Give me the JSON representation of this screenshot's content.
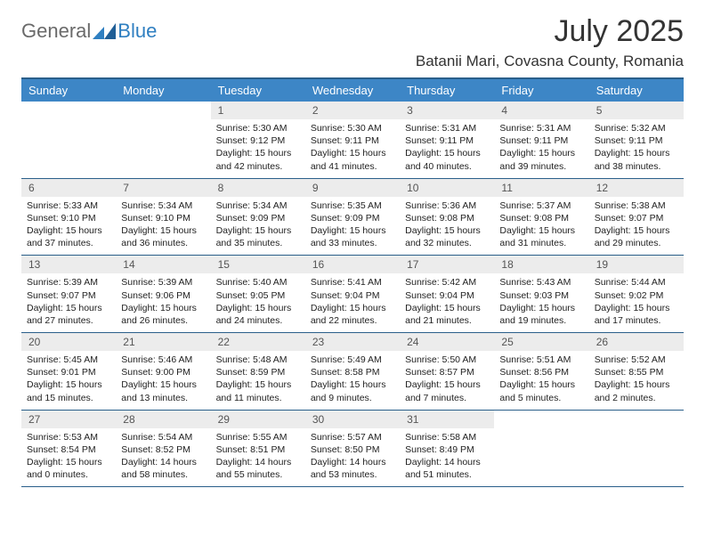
{
  "logo": {
    "general": "General",
    "blue": "Blue"
  },
  "title": "July 2025",
  "location": "Batanii Mari, Covasna County, Romania",
  "theme": {
    "header_bg": "#3d86c6",
    "header_text": "#ffffff",
    "rule": "#2a5f8a",
    "daynum_bg": "#ececec",
    "logo_gray": "#6a6a6a",
    "logo_blue": "#2f7fc1"
  },
  "weekdays": [
    "Sunday",
    "Monday",
    "Tuesday",
    "Wednesday",
    "Thursday",
    "Friday",
    "Saturday"
  ],
  "weeks": [
    [
      null,
      null,
      {
        "n": "1",
        "sr": "5:30 AM",
        "ss": "9:12 PM",
        "dl": "15 hours and 42 minutes."
      },
      {
        "n": "2",
        "sr": "5:30 AM",
        "ss": "9:11 PM",
        "dl": "15 hours and 41 minutes."
      },
      {
        "n": "3",
        "sr": "5:31 AM",
        "ss": "9:11 PM",
        "dl": "15 hours and 40 minutes."
      },
      {
        "n": "4",
        "sr": "5:31 AM",
        "ss": "9:11 PM",
        "dl": "15 hours and 39 minutes."
      },
      {
        "n": "5",
        "sr": "5:32 AM",
        "ss": "9:11 PM",
        "dl": "15 hours and 38 minutes."
      }
    ],
    [
      {
        "n": "6",
        "sr": "5:33 AM",
        "ss": "9:10 PM",
        "dl": "15 hours and 37 minutes."
      },
      {
        "n": "7",
        "sr": "5:34 AM",
        "ss": "9:10 PM",
        "dl": "15 hours and 36 minutes."
      },
      {
        "n": "8",
        "sr": "5:34 AM",
        "ss": "9:09 PM",
        "dl": "15 hours and 35 minutes."
      },
      {
        "n": "9",
        "sr": "5:35 AM",
        "ss": "9:09 PM",
        "dl": "15 hours and 33 minutes."
      },
      {
        "n": "10",
        "sr": "5:36 AM",
        "ss": "9:08 PM",
        "dl": "15 hours and 32 minutes."
      },
      {
        "n": "11",
        "sr": "5:37 AM",
        "ss": "9:08 PM",
        "dl": "15 hours and 31 minutes."
      },
      {
        "n": "12",
        "sr": "5:38 AM",
        "ss": "9:07 PM",
        "dl": "15 hours and 29 minutes."
      }
    ],
    [
      {
        "n": "13",
        "sr": "5:39 AM",
        "ss": "9:07 PM",
        "dl": "15 hours and 27 minutes."
      },
      {
        "n": "14",
        "sr": "5:39 AM",
        "ss": "9:06 PM",
        "dl": "15 hours and 26 minutes."
      },
      {
        "n": "15",
        "sr": "5:40 AM",
        "ss": "9:05 PM",
        "dl": "15 hours and 24 minutes."
      },
      {
        "n": "16",
        "sr": "5:41 AM",
        "ss": "9:04 PM",
        "dl": "15 hours and 22 minutes."
      },
      {
        "n": "17",
        "sr": "5:42 AM",
        "ss": "9:04 PM",
        "dl": "15 hours and 21 minutes."
      },
      {
        "n": "18",
        "sr": "5:43 AM",
        "ss": "9:03 PM",
        "dl": "15 hours and 19 minutes."
      },
      {
        "n": "19",
        "sr": "5:44 AM",
        "ss": "9:02 PM",
        "dl": "15 hours and 17 minutes."
      }
    ],
    [
      {
        "n": "20",
        "sr": "5:45 AM",
        "ss": "9:01 PM",
        "dl": "15 hours and 15 minutes."
      },
      {
        "n": "21",
        "sr": "5:46 AM",
        "ss": "9:00 PM",
        "dl": "15 hours and 13 minutes."
      },
      {
        "n": "22",
        "sr": "5:48 AM",
        "ss": "8:59 PM",
        "dl": "15 hours and 11 minutes."
      },
      {
        "n": "23",
        "sr": "5:49 AM",
        "ss": "8:58 PM",
        "dl": "15 hours and 9 minutes."
      },
      {
        "n": "24",
        "sr": "5:50 AM",
        "ss": "8:57 PM",
        "dl": "15 hours and 7 minutes."
      },
      {
        "n": "25",
        "sr": "5:51 AM",
        "ss": "8:56 PM",
        "dl": "15 hours and 5 minutes."
      },
      {
        "n": "26",
        "sr": "5:52 AM",
        "ss": "8:55 PM",
        "dl": "15 hours and 2 minutes."
      }
    ],
    [
      {
        "n": "27",
        "sr": "5:53 AM",
        "ss": "8:54 PM",
        "dl": "15 hours and 0 minutes."
      },
      {
        "n": "28",
        "sr": "5:54 AM",
        "ss": "8:52 PM",
        "dl": "14 hours and 58 minutes."
      },
      {
        "n": "29",
        "sr": "5:55 AM",
        "ss": "8:51 PM",
        "dl": "14 hours and 55 minutes."
      },
      {
        "n": "30",
        "sr": "5:57 AM",
        "ss": "8:50 PM",
        "dl": "14 hours and 53 minutes."
      },
      {
        "n": "31",
        "sr": "5:58 AM",
        "ss": "8:49 PM",
        "dl": "14 hours and 51 minutes."
      },
      null,
      null
    ]
  ],
  "labels": {
    "sunrise": "Sunrise:",
    "sunset": "Sunset:",
    "daylight": "Daylight:"
  }
}
